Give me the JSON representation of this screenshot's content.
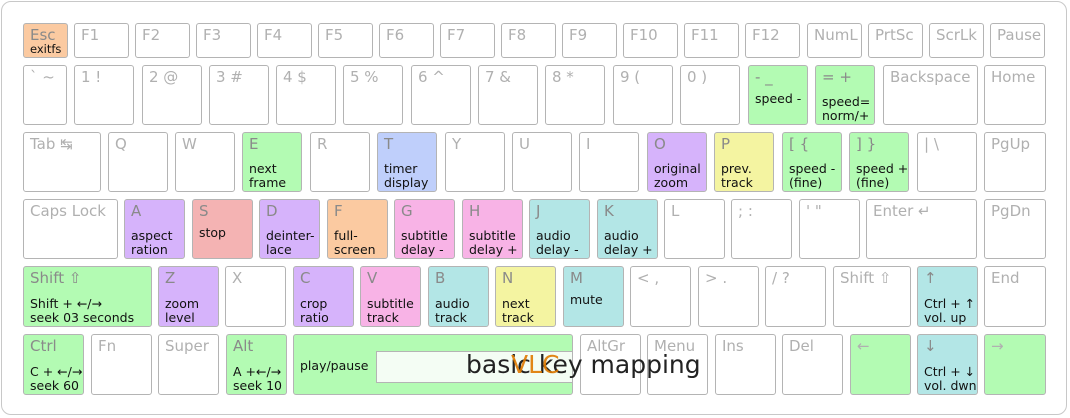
{
  "title": "basic key mapping",
  "title_accent": "VLC",
  "colors": {
    "green": "#b3fbb3",
    "purple": "#d6b3fb",
    "salmon": "#f4b3b3",
    "orange": "#fbcaa1",
    "blue": "#bfcffb",
    "pink": "#f8b3e6",
    "yellow": "#f4f4a1",
    "teal": "#b3e6e6",
    "plain": "#ffffff"
  },
  "rows": [
    [
      {
        "label": "Esc",
        "fn": "exitfs",
        "color": "orange"
      },
      {
        "label": "F1"
      },
      {
        "label": "F2"
      },
      {
        "label": "F3"
      },
      {
        "label": "F4"
      },
      {
        "label": "F5"
      },
      {
        "label": "F6"
      },
      {
        "label": "F7"
      },
      {
        "label": "F8"
      },
      {
        "label": "F9"
      },
      {
        "label": "F10"
      },
      {
        "label": "F11"
      },
      {
        "label": "F12"
      },
      {
        "label": "NumL"
      },
      {
        "label": "PrtSc"
      },
      {
        "label": "ScrLk"
      },
      {
        "label": "Pause"
      }
    ],
    [
      {
        "label": "` ~"
      },
      {
        "label": "1 !"
      },
      {
        "label": "2 @"
      },
      {
        "label": "3 #"
      },
      {
        "label": "4 $"
      },
      {
        "label": "5 %"
      },
      {
        "label": "6 ^"
      },
      {
        "label": "7 &"
      },
      {
        "label": "8 *"
      },
      {
        "label": "9 ("
      },
      {
        "label": "0 )"
      },
      {
        "label": "- _",
        "fn": "speed -",
        "color": "green",
        "mid": true
      },
      {
        "label": "= +",
        "fn": "speed=\nnorm/+",
        "color": "green"
      },
      {
        "label": "Backspace"
      },
      {
        "label": "Home"
      }
    ],
    [
      {
        "label": "Tab ↹"
      },
      {
        "label": "Q"
      },
      {
        "label": "W"
      },
      {
        "label": "E",
        "fn": "next\nframe",
        "color": "green"
      },
      {
        "label": "R"
      },
      {
        "label": "T",
        "fn": "timer\ndisplay",
        "color": "blue"
      },
      {
        "label": "Y"
      },
      {
        "label": "U"
      },
      {
        "label": "I"
      },
      {
        "label": "O",
        "fn": "original\nzoom",
        "color": "purple"
      },
      {
        "label": "P",
        "fn": "prev.\ntrack",
        "color": "yellow"
      },
      {
        "label": "[ {",
        "fn": "speed -\n(fine)",
        "color": "green"
      },
      {
        "label": "] }",
        "fn": "speed +\n(fine)",
        "color": "green"
      },
      {
        "label": "| \\"
      },
      {
        "label": "PgUp"
      }
    ],
    [
      {
        "label": "Caps Lock"
      },
      {
        "label": "A",
        "fn": "aspect\nration",
        "color": "purple"
      },
      {
        "label": "S",
        "fn": "stop",
        "color": "salmon",
        "mid": true
      },
      {
        "label": "D",
        "fn": "deinter-\nlace",
        "color": "purple"
      },
      {
        "label": "F",
        "fn": "full-\nscreen",
        "color": "orange"
      },
      {
        "label": "G",
        "fn": "subtitle\ndelay -",
        "color": "pink"
      },
      {
        "label": "H",
        "fn": "subtitle\ndelay +",
        "color": "pink"
      },
      {
        "label": "J",
        "fn": "audio\ndelay -",
        "color": "teal"
      },
      {
        "label": "K",
        "fn": "audio\ndelay +",
        "color": "teal"
      },
      {
        "label": "L"
      },
      {
        "label": "; :"
      },
      {
        "label": "' \""
      },
      {
        "label": "Enter ↵"
      },
      {
        "label": "PgDn"
      }
    ],
    [
      {
        "label": "Shift ⇧",
        "fn": "Shift + ←/→\nseek 03 seconds",
        "color": "green"
      },
      {
        "label": "Z",
        "fn": "zoom\nlevel",
        "color": "purple"
      },
      {
        "label": "X"
      },
      {
        "label": "C",
        "fn": "crop\nratio",
        "color": "purple"
      },
      {
        "label": "V",
        "fn": "subtitle\ntrack",
        "color": "pink"
      },
      {
        "label": "B",
        "fn": "audio\ntrack",
        "color": "teal"
      },
      {
        "label": "N",
        "fn": "next\ntrack",
        "color": "yellow"
      },
      {
        "label": "M",
        "fn": "mute",
        "color": "teal",
        "mid": true
      },
      {
        "label": "< ,"
      },
      {
        "label": "> ."
      },
      {
        "label": "/ ?"
      },
      {
        "label": "Shift ⇧"
      },
      {
        "label": "↑",
        "fn": "Ctrl + ↑\nvol. up",
        "color": "teal"
      },
      {
        "label": "End"
      }
    ],
    [
      {
        "label": "Ctrl",
        "fn": "C + ←/→\nseek 60",
        "color": "green"
      },
      {
        "label": "Fn"
      },
      {
        "label": "Super"
      },
      {
        "label": "Alt",
        "fn": "A +←/→\nseek 10",
        "color": "green"
      },
      {
        "label": "",
        "fn": "play/pause",
        "color": "green",
        "mid": true
      },
      {
        "label": "AltGr"
      },
      {
        "label": "Menu"
      },
      {
        "label": "Ins"
      },
      {
        "label": "Del"
      },
      {
        "label": "←",
        "color": "green"
      },
      {
        "label": "↓",
        "fn": "Ctrl + ↓\nvol. dwn",
        "color": "teal"
      },
      {
        "label": "→",
        "color": "green"
      }
    ]
  ]
}
